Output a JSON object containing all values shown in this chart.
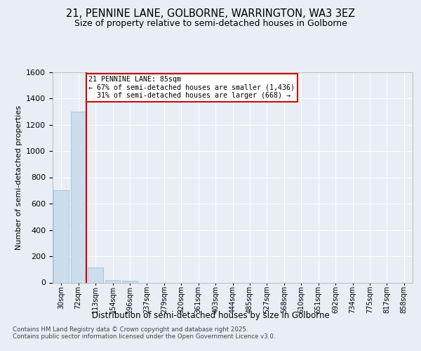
{
  "title": "21, PENNINE LANE, GOLBORNE, WARRINGTON, WA3 3EZ",
  "subtitle": "Size of property relative to semi-detached houses in Golborne",
  "xlabel": "Distribution of semi-detached houses by size in Golborne",
  "ylabel": "Number of semi-detached properties",
  "categories": [
    "30sqm",
    "72sqm",
    "113sqm",
    "154sqm",
    "196sqm",
    "237sqm",
    "279sqm",
    "320sqm",
    "361sqm",
    "403sqm",
    "444sqm",
    "485sqm",
    "527sqm",
    "568sqm",
    "610sqm",
    "651sqm",
    "692sqm",
    "734sqm",
    "775sqm",
    "817sqm",
    "858sqm"
  ],
  "values": [
    700,
    1300,
    115,
    20,
    15,
    0,
    0,
    0,
    0,
    0,
    0,
    0,
    0,
    0,
    0,
    0,
    0,
    0,
    0,
    0,
    0
  ],
  "bar_color": "#ccdded",
  "bar_edgecolor": "#99bbcc",
  "property_line_x": 1.45,
  "ylim": [
    0,
    1600
  ],
  "yticks": [
    0,
    200,
    400,
    600,
    800,
    1000,
    1200,
    1400,
    1600
  ],
  "background_color": "#e8eef4",
  "plot_background": "#e8eef4",
  "grid_color": "#ffffff",
  "title_fontsize": 10.5,
  "subtitle_fontsize": 9,
  "annotation_line1": "21 PENNINE LANE: 85sqm",
  "annotation_line2": "← 67% of semi-detached houses are smaller (1,436)",
  "annotation_line3": "  31% of semi-detached houses are larger (668) →",
  "footer_text": "Contains HM Land Registry data © Crown copyright and database right 2025.\nContains public sector information licensed under the Open Government Licence v3.0.",
  "red_line_color": "#cc0000",
  "annotation_box_edgecolor": "#cc0000"
}
